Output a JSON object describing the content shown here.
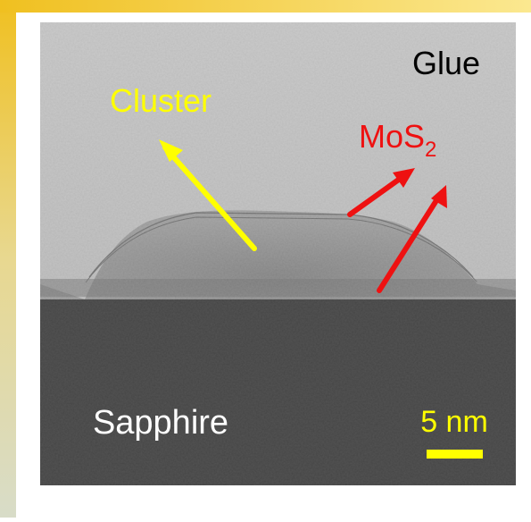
{
  "labels": {
    "glue": "Glue",
    "cluster": "Cluster",
    "mos2": {
      "text": "MoS",
      "subscript": "2"
    },
    "sapphire": "Sapphire",
    "scale_bar": "5 nm"
  }
}
